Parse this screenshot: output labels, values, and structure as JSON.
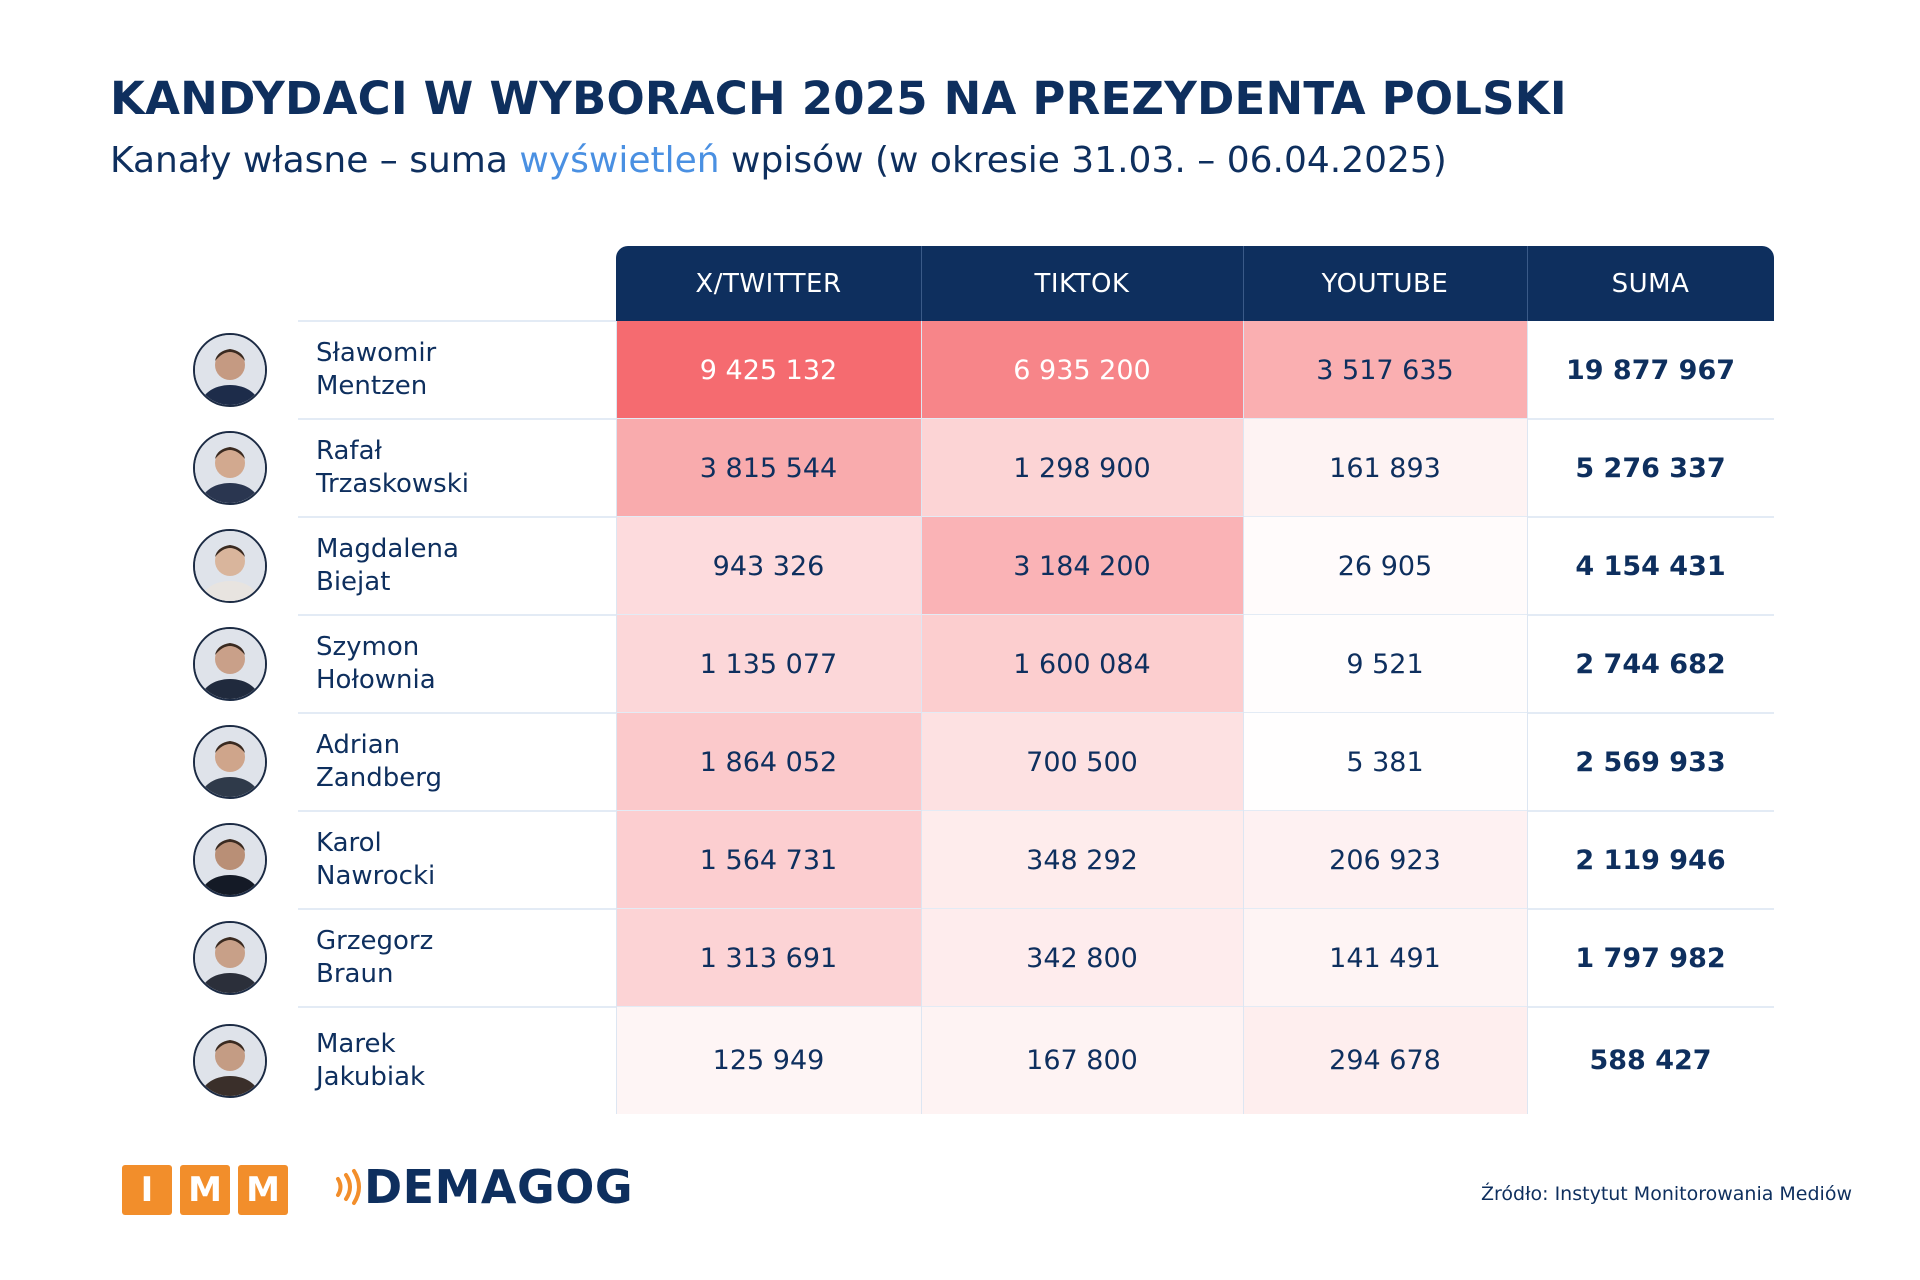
{
  "title": "KANDYDACI W WYBORACH 2025 NA PREZYDENTA POLSKI",
  "subtitle": {
    "part1": "Kanały własne – suma ",
    "highlight": "wyświetleń",
    "part2": " wpisów (w okresie 31.03. – 06.04.2025)"
  },
  "colors": {
    "navy": "#0e2f5e",
    "accent_blue": "#4a90e2",
    "orange": "#f28e2b",
    "heat_max": "#f56b70",
    "heat_min": "#ffffff"
  },
  "columns": [
    "X/TWITTER",
    "TIKTOK",
    "YOUTUBE",
    "SUMA"
  ],
  "chart_data": {
    "type": "table",
    "columns": [
      "X/TWITTER",
      "TIKTOK",
      "YOUTUBE",
      "SUMA"
    ],
    "rows": [
      {
        "first": "Sławomir",
        "last": "Mentzen",
        "values": [
          "9 425 132",
          "6 935 200",
          "3 517 635",
          "19 877 967"
        ],
        "numbers": [
          9425132,
          6935200,
          3517635
        ]
      },
      {
        "first": "Rafał",
        "last": "Trzaskowski",
        "values": [
          "3 815 544",
          "1 298 900",
          "161 893",
          "5 276 337"
        ],
        "numbers": [
          3815544,
          1298900,
          161893
        ]
      },
      {
        "first": "Magdalena",
        "last": "Biejat",
        "values": [
          "943 326",
          "3 184 200",
          "26 905",
          "4 154 431"
        ],
        "numbers": [
          943326,
          3184200,
          26905
        ]
      },
      {
        "first": "Szymon",
        "last": "Hołownia",
        "values": [
          "1 135 077",
          "1 600 084",
          "9 521",
          "2 744 682"
        ],
        "numbers": [
          1135077,
          1600084,
          9521
        ]
      },
      {
        "first": "Adrian",
        "last": "Zandberg",
        "values": [
          "1 864 052",
          "700 500",
          "5 381",
          "2 569 933"
        ],
        "numbers": [
          1864052,
          700500,
          5381
        ]
      },
      {
        "first": "Karol",
        "last": "Nawrocki",
        "values": [
          "1 564 731",
          "348 292",
          "206 923",
          "2 119 946"
        ],
        "numbers": [
          1564731,
          348292,
          206923
        ]
      },
      {
        "first": "Grzegorz",
        "last": "Braun",
        "values": [
          "1 313 691",
          "342 800",
          "141 491",
          "1 797 982"
        ],
        "numbers": [
          1313691,
          342800,
          141491
        ]
      },
      {
        "first": "Marek",
        "last": "Jakubiak",
        "values": [
          "125 949",
          "167 800",
          "294 678",
          "588 427"
        ],
        "numbers": [
          125949,
          167800,
          294678
        ]
      }
    ]
  },
  "footer": {
    "imm_letters": [
      "I",
      "M",
      "M"
    ],
    "demagog": "DEMAGOG",
    "source": "Źródło: Instytut Monitorowania Mediów"
  }
}
